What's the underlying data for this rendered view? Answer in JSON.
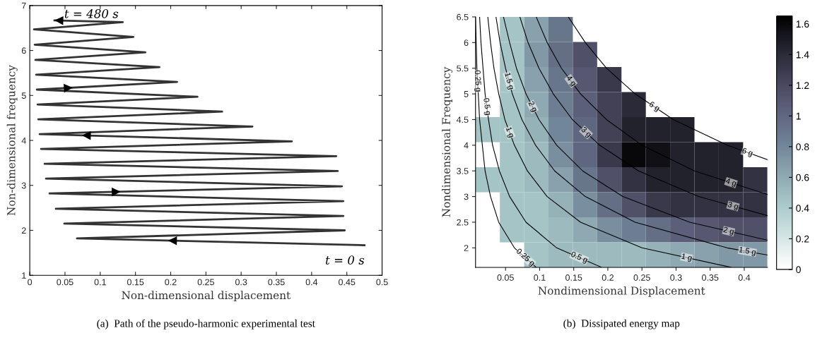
{
  "chart_data": [
    {
      "type": "line",
      "xlabel": "Non-dimensional displacement",
      "ylabel": "Non-dimensional frequency",
      "xlim": [
        0,
        0.5
      ],
      "ylim": [
        1,
        7
      ],
      "xticks": [
        0,
        0.05,
        0.1,
        0.15,
        0.2,
        0.25,
        0.3,
        0.35,
        0.4,
        0.45,
        0.5
      ],
      "yticks": [
        1,
        2,
        3,
        4,
        5,
        6,
        7
      ],
      "grid": false,
      "legend": false,
      "series": [
        {
          "color": "#333333",
          "x": [
            0.475,
            0.067,
            0.447,
            0.049,
            0.445,
            0.037,
            0.445,
            0.028,
            0.443,
            0.023,
            0.437,
            0.021,
            0.435,
            0.016,
            0.372,
            0.014,
            0.316,
            0.012,
            0.273,
            0.011,
            0.238,
            0.01,
            0.209,
            0.009,
            0.184,
            0.008,
            0.164,
            0.007,
            0.147,
            0.006,
            0.132,
            0.035
          ],
          "values": [
            1.67,
            1.82,
            2.0,
            2.15,
            2.32,
            2.48,
            2.65,
            2.82,
            2.98,
            3.15,
            3.32,
            3.48,
            3.65,
            3.81,
            3.98,
            4.14,
            4.31,
            4.47,
            4.64,
            4.8,
            4.97,
            5.13,
            5.3,
            5.46,
            5.63,
            5.79,
            5.96,
            6.13,
            6.3,
            6.47,
            6.63,
            6.67
          ]
        }
      ],
      "annotations": [
        {
          "text": "t = 480 s",
          "x": 0.035,
          "y": 6.67
        },
        {
          "text": "t = 0 s",
          "x": 0.475,
          "y": 1.67
        },
        "(a)  Path of the pseudo-harmonic experimental test"
      ]
    },
    {
      "type": "heatmap",
      "xlabel": "Nondimensional Displacement",
      "ylabel": "Nondimensional Frequency",
      "xlim": [
        0.006,
        0.434
      ],
      "ylim": [
        1.62,
        6.5
      ],
      "xticks": [
        0.05,
        0.1,
        0.15,
        0.2,
        0.25,
        0.3,
        0.35,
        0.4
      ],
      "yticks": [
        2,
        2.5,
        3,
        3.5,
        4,
        4.5,
        5,
        5.5,
        6,
        6.5
      ],
      "clim": [
        0,
        1.65
      ],
      "cticks": [
        0,
        0.2,
        0.4,
        0.6,
        0.8,
        1,
        1.2,
        1.4,
        1.6
      ],
      "cells": [
        [
          null,
          0.45,
          0.65,
          0.9,
          null,
          null,
          null,
          null,
          null,
          null,
          null,
          null
        ],
        [
          null,
          0.45,
          0.7,
          0.95,
          1.15,
          null,
          null,
          null,
          null,
          null,
          null,
          null
        ],
        [
          null,
          0.45,
          0.65,
          0.9,
          1.1,
          1.3,
          null,
          null,
          null,
          null,
          null,
          null
        ],
        [
          null,
          0.45,
          0.6,
          0.85,
          1.05,
          1.25,
          1.4,
          null,
          null,
          null,
          null,
          null
        ],
        [
          0.45,
          0.45,
          0.55,
          0.8,
          1.0,
          1.25,
          1.45,
          1.45,
          1.45,
          null,
          null,
          null
        ],
        [
          null,
          0.45,
          0.5,
          0.75,
          1.0,
          1.3,
          1.6,
          1.55,
          1.45,
          1.45,
          1.45,
          null
        ],
        [
          0.45,
          0.45,
          0.5,
          0.65,
          0.9,
          1.15,
          1.35,
          1.45,
          1.45,
          1.45,
          1.45,
          1.35
        ],
        [
          null,
          0.45,
          0.45,
          0.55,
          0.75,
          0.95,
          1.15,
          1.3,
          1.35,
          1.35,
          1.35,
          1.35
        ],
        [
          null,
          0.45,
          0.45,
          0.5,
          0.6,
          0.75,
          0.85,
          0.95,
          1.05,
          1.1,
          1.15,
          1.15
        ],
        [
          null,
          null,
          0.45,
          0.5,
          0.5,
          0.5,
          0.5,
          0.55,
          0.6,
          0.65,
          0.7,
          0.7
        ]
      ],
      "grid": false,
      "series": [
        {
          "type": "line",
          "name": "0.25 g",
          "color": "#000000",
          "x": [
            0.006,
            0.007,
            0.008,
            0.01,
            0.012,
            0.016,
            0.02,
            0.028,
            0.04,
            0.063,
            0.095
          ],
          "values": [
            6.5,
            6,
            5.5,
            5,
            4.5,
            4,
            3.5,
            3,
            2.5,
            2,
            1.62
          ]
        },
        {
          "type": "line",
          "name": "0.5 g",
          "color": "#000000",
          "x": [
            0.012,
            0.014,
            0.017,
            0.02,
            0.025,
            0.031,
            0.041,
            0.056,
            0.08,
            0.125,
            0.191
          ],
          "values": [
            6.5,
            6,
            5.5,
            5,
            4.5,
            4,
            3.5,
            3,
            2.5,
            2,
            1.62
          ]
        },
        {
          "type": "line",
          "name": "1 g",
          "color": "#000000",
          "x": [
            0.024,
            0.028,
            0.033,
            0.04,
            0.049,
            0.063,
            0.082,
            0.111,
            0.16,
            0.25,
            0.381
          ],
          "values": [
            6.5,
            6,
            5.5,
            5,
            4.5,
            4,
            3.5,
            3,
            2.5,
            2,
            1.62
          ]
        },
        {
          "type": "line",
          "name": "1.5 g",
          "color": "#000000",
          "x": [
            0.036,
            0.042,
            0.05,
            0.06,
            0.074,
            0.094,
            0.122,
            0.167,
            0.24,
            0.375,
            0.434
          ],
          "values": [
            6.5,
            6,
            5.5,
            5,
            4.5,
            4,
            3.5,
            3,
            2.5,
            2,
            1.86
          ]
        },
        {
          "type": "line",
          "name": "2 g",
          "color": "#000000",
          "x": [
            0.047,
            0.056,
            0.066,
            0.08,
            0.099,
            0.125,
            0.163,
            0.222,
            0.32,
            0.434
          ],
          "values": [
            6.5,
            6,
            5.5,
            5,
            4.5,
            4,
            3.5,
            3,
            2.5,
            2.15
          ]
        },
        {
          "type": "line",
          "name": "3 g",
          "color": "#000000",
          "x": [
            0.071,
            0.083,
            0.099,
            0.12,
            0.148,
            0.188,
            0.245,
            0.333,
            0.434
          ],
          "values": [
            6.5,
            6,
            5.5,
            5,
            4.5,
            4,
            3.5,
            3,
            2.63
          ]
        },
        {
          "type": "line",
          "name": "4 g",
          "color": "#000000",
          "x": [
            0.095,
            0.111,
            0.132,
            0.16,
            0.198,
            0.25,
            0.327,
            0.434
          ],
          "values": [
            6.5,
            6,
            5.5,
            5,
            4.5,
            4,
            3.5,
            3.04
          ]
        },
        {
          "type": "line",
          "name": "6 g",
          "color": "#000000",
          "x": [
            0.142,
            0.167,
            0.198,
            0.24,
            0.296,
            0.375,
            0.434
          ],
          "values": [
            6.5,
            6,
            5.5,
            5,
            4.5,
            4,
            3.72
          ]
        }
      ],
      "annotations": [
        "(b)  Dissipated energy map"
      ]
    }
  ]
}
